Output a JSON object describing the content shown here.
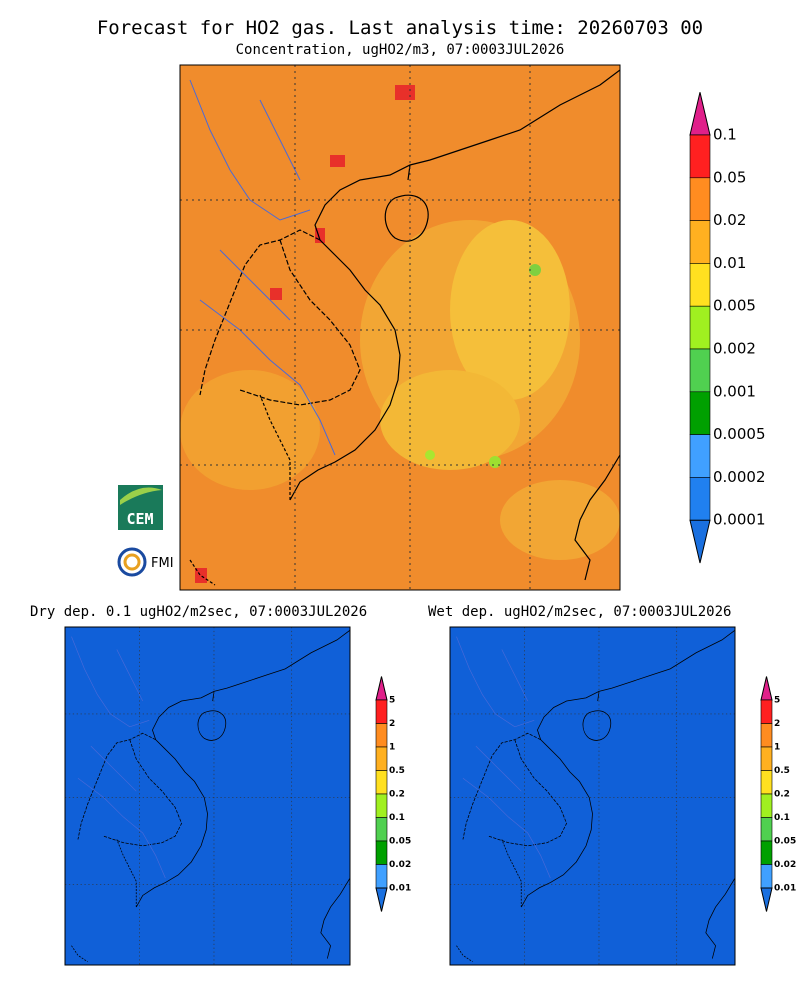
{
  "title": "Forecast for HO2 gas. Last analysis time: 20260703 00",
  "subtitle": "Concentration, ugHO2/m3, 07:0003JUL2026",
  "main_colorbar": {
    "labels": [
      "0.1",
      "0.05",
      "0.02",
      "0.01",
      "0.005",
      "0.002",
      "0.001",
      "0.0005",
      "0.0002",
      "0.0001"
    ]
  },
  "logos": {
    "cem": "CEM",
    "fmi": "FMI"
  },
  "panels": [
    {
      "title": "Dry dep. 0.1 ugHO2/m2sec, 07:0003JUL2026",
      "colorbar": {
        "labels": [
          "5",
          "2",
          "1",
          "0.5",
          "0.2",
          "0.1",
          "0.05",
          "0.02",
          "0.01"
        ]
      }
    },
    {
      "title": "Wet dep. ugHO2/m2sec, 07:0003JUL2026",
      "colorbar": {
        "labels": [
          "5",
          "2",
          "1",
          "0.5",
          "0.2",
          "0.1",
          "0.05",
          "0.02",
          "0.01"
        ]
      }
    }
  ]
}
